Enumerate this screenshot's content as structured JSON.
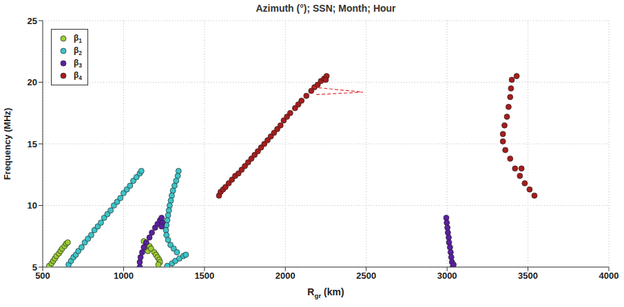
{
  "chart_data": {
    "type": "scatter",
    "title": "Azimuth (°); SSN; Month; Hour",
    "x_label": "Rgr (km)",
    "y_label": "Frequency (MHz)",
    "xlim": [
      500,
      4000
    ],
    "xticks": [
      500,
      1000,
      1500,
      2000,
      2500,
      3000,
      3500,
      4000
    ],
    "ylim": [
      5,
      25
    ],
    "yticks": [
      5,
      10,
      15,
      20,
      25
    ],
    "grid": true,
    "legend": "upper left",
    "marker": "circle",
    "series": [
      {
        "name": "β1",
        "color": "#9acd32",
        "x": [
          540,
          555,
          565,
          575,
          585,
          600,
          610,
          620,
          635,
          645,
          655,
          1125,
          1140,
          1160,
          1150,
          1170,
          1190,
          1200,
          1210,
          1220,
          1225,
          1215,
          1130
        ],
        "values": [
          5.1,
          5.3,
          5.5,
          5.7,
          5.9,
          6.1,
          6.3,
          6.5,
          6.7,
          6.9,
          7.0,
          7.1,
          6.9,
          6.7,
          6.3,
          6.5,
          6.2,
          6.0,
          5.8,
          5.6,
          5.4,
          5.2,
          6.6
        ]
      },
      {
        "name": "β2",
        "color": "#3cc4c8",
        "x": [
          660,
          675,
          690,
          705,
          720,
          740,
          760,
          780,
          800,
          820,
          840,
          860,
          880,
          900,
          920,
          940,
          960,
          980,
          1000,
          1020,
          1040,
          1060,
          1080,
          1100,
          1110,
          1340,
          1335,
          1325,
          1315,
          1305,
          1298,
          1292,
          1285,
          1280,
          1275,
          1270,
          1265,
          1262,
          1265,
          1275,
          1290,
          1310,
          1330,
          1270,
          1300,
          1320,
          1345,
          1370,
          1385
        ],
        "values": [
          5.2,
          5.5,
          5.8,
          6.0,
          6.3,
          6.6,
          7.0,
          7.3,
          7.6,
          8.0,
          8.3,
          8.6,
          9.0,
          9.3,
          9.6,
          10.0,
          10.3,
          10.6,
          11.0,
          11.3,
          11.6,
          12.0,
          12.3,
          12.6,
          12.8,
          12.8,
          12.4,
          12.0,
          11.6,
          11.2,
          10.8,
          10.4,
          10.0,
          9.6,
          9.2,
          8.8,
          8.4,
          8.0,
          7.6,
          7.2,
          6.8,
          6.5,
          6.2,
          5.1,
          5.3,
          5.5,
          5.7,
          5.9,
          6.0
        ]
      },
      {
        "name": "β3",
        "color": "#5b1fa3",
        "x": [
          1100,
          1100,
          1105,
          1115,
          1125,
          1140,
          1160,
          1175,
          1195,
          1210,
          1225,
          1235,
          1240,
          1235,
          2995,
          2998,
          3002,
          3005,
          3010,
          3012,
          3018,
          3022,
          3026,
          3030,
          3035,
          3040
        ],
        "values": [
          5.0,
          5.4,
          5.8,
          6.2,
          6.6,
          7.0,
          7.4,
          7.8,
          8.2,
          8.5,
          8.8,
          9.0,
          8.6,
          8.3,
          9.0,
          8.6,
          8.2,
          7.8,
          7.4,
          7.0,
          6.6,
          6.2,
          5.8,
          5.4,
          5.0,
          5.2
        ]
      },
      {
        "name": "β4",
        "color": "#a81c1c",
        "x": [
          1590,
          1600,
          1615,
          1630,
          1650,
          1670,
          1690,
          1710,
          1730,
          1750,
          1770,
          1790,
          1810,
          1830,
          1850,
          1870,
          1890,
          1910,
          1930,
          1950,
          1970,
          1990,
          2010,
          2030,
          2060,
          2080,
          2100,
          2130,
          2160,
          2180,
          2200,
          2220,
          2240,
          2255,
          2250,
          3540,
          3510,
          3480,
          3450,
          3420,
          3390,
          3360,
          3345,
          3345,
          3355,
          3370,
          3380,
          3390,
          3395,
          3400,
          3430,
          3460
        ],
        "values": [
          10.8,
          11.1,
          11.3,
          11.5,
          11.8,
          12.1,
          12.4,
          12.6,
          12.9,
          13.2,
          13.5,
          13.8,
          14.1,
          14.4,
          14.7,
          15.0,
          15.3,
          15.6,
          15.9,
          16.2,
          16.5,
          16.9,
          17.2,
          17.5,
          17.9,
          18.2,
          18.5,
          18.9,
          19.3,
          19.6,
          19.8,
          20.1,
          20.3,
          20.5,
          20.2,
          10.8,
          11.3,
          11.8,
          12.4,
          13.0,
          13.8,
          14.5,
          15.2,
          15.8,
          16.5,
          17.2,
          18.0,
          18.8,
          19.5,
          20.2,
          20.5,
          13.0
        ]
      },
      {
        "type": "line",
        "line_style": "dashed",
        "color": "#e03030",
        "x": [
          2170,
          2480,
          2190
        ],
        "values": [
          19.6,
          19.2,
          19.0
        ]
      }
    ]
  }
}
